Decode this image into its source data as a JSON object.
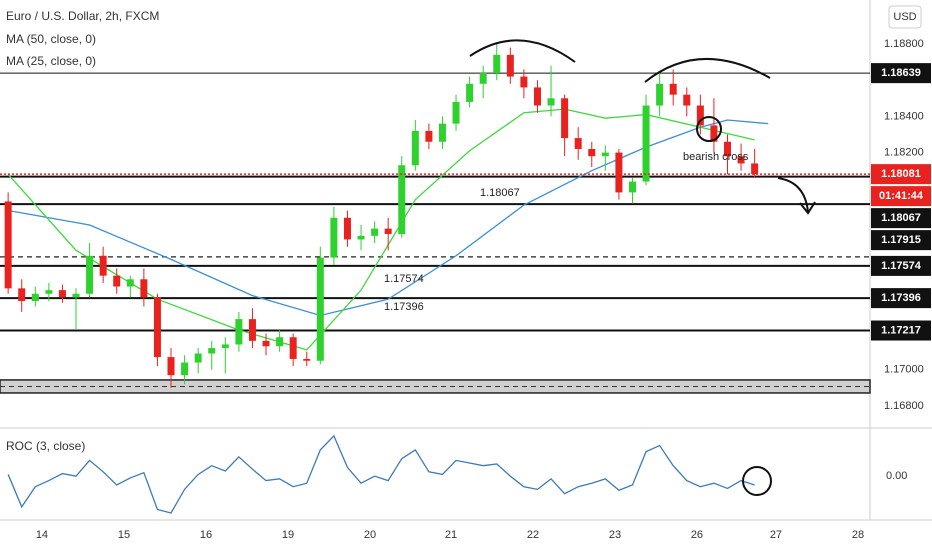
{
  "chart_data": {
    "type": "candlestick",
    "title": "Euro / U.S. Dollar, 2h, FXCM",
    "indicators": [
      "MA (50, close, 0)",
      "MA (25, close, 0)"
    ],
    "currency": "USD",
    "candles": [
      [
        1.1793,
        1.1798,
        1.1742,
        1.1745
      ],
      [
        1.1745,
        1.175,
        1.1732,
        1.1738
      ],
      [
        1.1738,
        1.1746,
        1.1735,
        1.1742
      ],
      [
        1.1742,
        1.1748,
        1.1738,
        1.1744
      ],
      [
        1.1744,
        1.1747,
        1.1737,
        1.174
      ],
      [
        1.174,
        1.1745,
        1.1722,
        1.1742
      ],
      [
        1.1742,
        1.177,
        1.174,
        1.1763
      ],
      [
        1.1763,
        1.1768,
        1.1748,
        1.1752
      ],
      [
        1.1752,
        1.1756,
        1.1742,
        1.1746
      ],
      [
        1.1746,
        1.1752,
        1.174,
        1.175
      ],
      [
        1.175,
        1.1756,
        1.1735,
        1.174
      ],
      [
        1.174,
        1.1742,
        1.1702,
        1.1707
      ],
      [
        1.1707,
        1.1712,
        1.169,
        1.1697
      ],
      [
        1.1697,
        1.1708,
        1.1692,
        1.1704
      ],
      [
        1.1704,
        1.1712,
        1.1698,
        1.1709
      ],
      [
        1.1709,
        1.1716,
        1.17,
        1.1712
      ],
      [
        1.1712,
        1.1718,
        1.1698,
        1.1714
      ],
      [
        1.1714,
        1.1732,
        1.171,
        1.1728
      ],
      [
        1.1728,
        1.1734,
        1.1712,
        1.1716
      ],
      [
        1.1716,
        1.172,
        1.1708,
        1.1713
      ],
      [
        1.1713,
        1.1722,
        1.171,
        1.1718
      ],
      [
        1.1718,
        1.172,
        1.1702,
        1.1706
      ],
      [
        1.1706,
        1.171,
        1.1702,
        1.1705
      ],
      [
        1.1705,
        1.1768,
        1.1703,
        1.1762
      ],
      [
        1.1762,
        1.179,
        1.1758,
        1.1784
      ],
      [
        1.1784,
        1.1788,
        1.1768,
        1.1772
      ],
      [
        1.1772,
        1.178,
        1.1766,
        1.1774
      ],
      [
        1.1774,
        1.1782,
        1.177,
        1.1778
      ],
      [
        1.1778,
        1.1784,
        1.1766,
        1.1775
      ],
      [
        1.1775,
        1.1818,
        1.1773,
        1.1813
      ],
      [
        1.1813,
        1.1838,
        1.181,
        1.1832
      ],
      [
        1.1832,
        1.1836,
        1.1822,
        1.1826
      ],
      [
        1.1826,
        1.184,
        1.1822,
        1.1836
      ],
      [
        1.1836,
        1.1852,
        1.1832,
        1.1848
      ],
      [
        1.1848,
        1.1862,
        1.1845,
        1.1858
      ],
      [
        1.1858,
        1.1868,
        1.185,
        1.1864
      ],
      [
        1.1864,
        1.188,
        1.186,
        1.1874
      ],
      [
        1.1874,
        1.1878,
        1.1858,
        1.1862
      ],
      [
        1.1862,
        1.1866,
        1.185,
        1.1856
      ],
      [
        1.1856,
        1.186,
        1.1842,
        1.1846
      ],
      [
        1.1846,
        1.1868,
        1.184,
        1.185
      ],
      [
        1.185,
        1.1852,
        1.1818,
        1.1828
      ],
      [
        1.1828,
        1.1834,
        1.1816,
        1.1822
      ],
      [
        1.1822,
        1.1826,
        1.1812,
        1.1818
      ],
      [
        1.1818,
        1.1824,
        1.181,
        1.182
      ],
      [
        1.182,
        1.1822,
        1.1794,
        1.1798
      ],
      [
        1.1798,
        1.1806,
        1.1792,
        1.1804
      ],
      [
        1.1804,
        1.1852,
        1.1802,
        1.1846
      ],
      [
        1.1846,
        1.1864,
        1.184,
        1.1858
      ],
      [
        1.1858,
        1.1866,
        1.1846,
        1.1852
      ],
      [
        1.1852,
        1.1856,
        1.184,
        1.1846
      ],
      [
        1.1846,
        1.1852,
        1.183,
        1.1835
      ],
      [
        1.1835,
        1.185,
        1.182,
        1.1826
      ],
      [
        1.1826,
        1.183,
        1.1808,
        1.1818
      ],
      [
        1.1818,
        1.1825,
        1.181,
        1.1814
      ],
      [
        1.1814,
        1.1822,
        1.1806,
        1.18081
      ]
    ],
    "up_color": "#2fd12f",
    "down_color": "#e8231f",
    "series": [
      {
        "name": "MA (50, close, 0)",
        "color": "#3d8fd1",
        "x": [
          0,
          6,
          12,
          18,
          23,
          28,
          33,
          38,
          43,
          47,
          51,
          53,
          56
        ],
        "values": [
          1.1788,
          1.178,
          1.1761,
          1.1741,
          1.173,
          1.1739,
          1.1763,
          1.1791,
          1.181,
          1.1823,
          1.1834,
          1.1838,
          1.1836
        ]
      },
      {
        "name": "MA (25, close, 0)",
        "color": "#3fd83f",
        "x": [
          0,
          5,
          11,
          17,
          22,
          26,
          30,
          34,
          38,
          41,
          44,
          47,
          51,
          55
        ],
        "values": [
          1.1808,
          1.1766,
          1.1739,
          1.1722,
          1.1711,
          1.1744,
          1.1794,
          1.1821,
          1.1842,
          1.1844,
          1.1839,
          1.1841,
          1.1834,
          1.1827
        ]
      }
    ],
    "last_price": 1.18081,
    "countdown": "01:41:44",
    "levels": [
      1.18639,
      1.18067,
      1.17915,
      1.17574,
      1.17396,
      1.17217
    ],
    "dashed_levels": [
      1.17624
    ],
    "zone": [
      1.16944,
      1.16872
    ],
    "annotations": [
      "1.18067",
      "1.17574",
      "1.17396",
      "bearish cross"
    ],
    "xlim": [
      -0.6,
      63.5
    ],
    "ylim": [
      1.16695,
      1.19043
    ],
    "yticks": [
      {
        "value": 1.188,
        "label": "1.18800"
      },
      {
        "value": 1.184,
        "label": "1.18400"
      },
      {
        "value": 1.182,
        "label": "1.18200"
      },
      {
        "value": 1.17,
        "label": "1.17000"
      },
      {
        "value": 1.168,
        "label": "1.16800"
      }
    ],
    "xticks": [
      {
        "value": 2.49,
        "label": "14"
      },
      {
        "value": 8.54,
        "label": "15"
      },
      {
        "value": 14.58,
        "label": "16"
      },
      {
        "value": 20.62,
        "label": "19"
      },
      {
        "value": 26.66,
        "label": "20"
      },
      {
        "value": 32.63,
        "label": "21"
      },
      {
        "value": 38.67,
        "label": "22"
      },
      {
        "value": 44.71,
        "label": "23"
      },
      {
        "value": 50.75,
        "label": "26"
      },
      {
        "value": 56.57,
        "label": "27"
      },
      {
        "value": 62.62,
        "label": "28"
      }
    ],
    "roc": {
      "name": "ROC (3, close)",
      "color": "#3d7ab8",
      "values": [
        0.02,
        -0.35,
        -0.12,
        -0.05,
        0.03,
        0.0,
        0.18,
        0.05,
        -0.1,
        -0.02,
        0.04,
        -0.38,
        -0.42,
        -0.15,
        0.02,
        0.12,
        0.06,
        0.22,
        0.08,
        -0.05,
        -0.03,
        -0.12,
        -0.08,
        0.3,
        0.46,
        0.1,
        -0.08,
        0.0,
        -0.05,
        0.2,
        0.3,
        0.05,
        0.02,
        0.18,
        0.15,
        0.12,
        0.14,
        0.0,
        -0.12,
        -0.15,
        -0.03,
        -0.2,
        -0.12,
        -0.08,
        -0.03,
        -0.16,
        -0.1,
        0.28,
        0.35,
        0.12,
        -0.05,
        -0.12,
        -0.08,
        -0.14,
        -0.05,
        -0.1
      ],
      "ylim": [
        -0.5,
        0.55
      ],
      "yticks": [
        {
          "value": 0,
          "label": "0.00"
        }
      ]
    }
  }
}
